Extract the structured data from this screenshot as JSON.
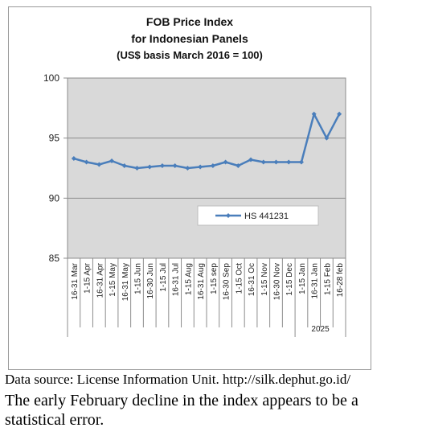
{
  "chart_data": {
    "type": "line",
    "title": [
      "FOB Price Index",
      "for Indonesian Panels",
      "(US$ basis March 2016 = 100)"
    ],
    "xlabel": "",
    "ylabel": "",
    "ylim": [
      85,
      100
    ],
    "yticks": [
      "100",
      "95",
      "90",
      "85"
    ],
    "grid": true,
    "legend": "center-right",
    "categories": [
      "16-31 Mar",
      "1-15 Apr",
      "16-31 Apr",
      "1-15 May",
      "16-31 May",
      "1-15 Jun",
      "16-30 Jun",
      "1-15 Jul",
      "16-31 Jul",
      "1-15 Aug",
      "16-31 Aug",
      "1-15 sep",
      "16-30 Sep",
      "1-15 Oct",
      "16-31 Oc",
      "1-15 Nov",
      "16-30 Nov",
      "1-15 Dec",
      "1-15 Jan",
      "16-31 Jan",
      "1-15 Feb",
      "16-28 feb"
    ],
    "group_label": "2025",
    "series": [
      {
        "name": "HS 441231",
        "color": "#4a7ebb",
        "values": [
          93.3,
          93.0,
          92.8,
          93.1,
          92.7,
          92.5,
          92.6,
          92.7,
          92.7,
          92.5,
          92.6,
          92.7,
          93.0,
          92.7,
          93.2,
          93.0,
          93.0,
          93.0,
          93.0,
          97.0,
          95.0,
          97.0
        ]
      }
    ]
  },
  "notes": {
    "source": "Data source: License Information Unit. http://silk.dephut.go.id/",
    "comment": "The early February decline in the index appears to be a statistical error."
  }
}
